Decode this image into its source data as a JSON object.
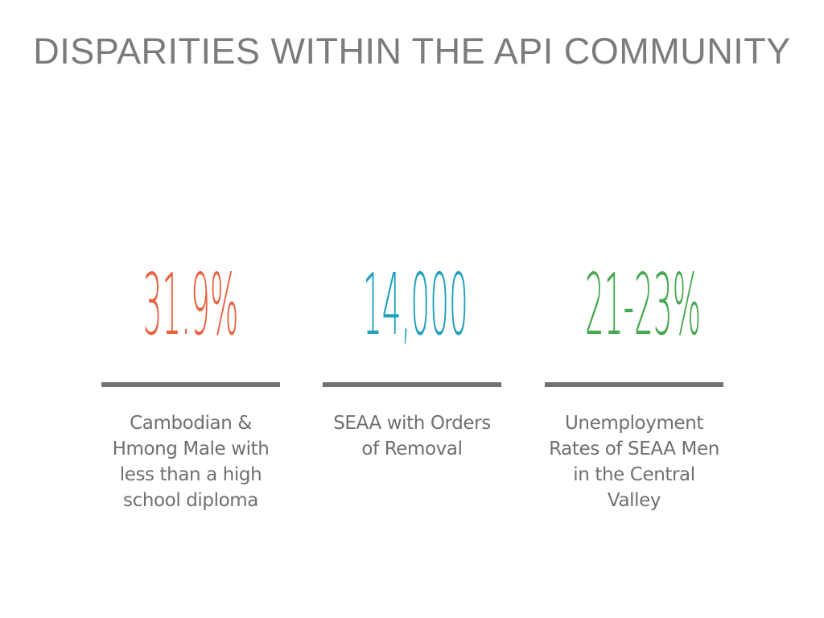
{
  "slide": {
    "title": "DISPARITIES WITHIN THE API COMMUNITY"
  },
  "stats": [
    {
      "value": "31.9%",
      "color": "#e8613e",
      "caption": "Cambodian &\nHmong Male with\nless than a high\nschool diploma"
    },
    {
      "value": "14,000",
      "color": "#1fa0bd",
      "caption": "SEAA with Orders\nof Removal"
    },
    {
      "value": "21-23%",
      "color": "#46a84f",
      "caption": "Unemployment\nRates of SEAA Men\nin the Central Valley"
    }
  ],
  "colors": {
    "title": "#7b7b7b",
    "divider": "#727272",
    "caption": "#6f6f6f",
    "background": "#ffffff"
  }
}
